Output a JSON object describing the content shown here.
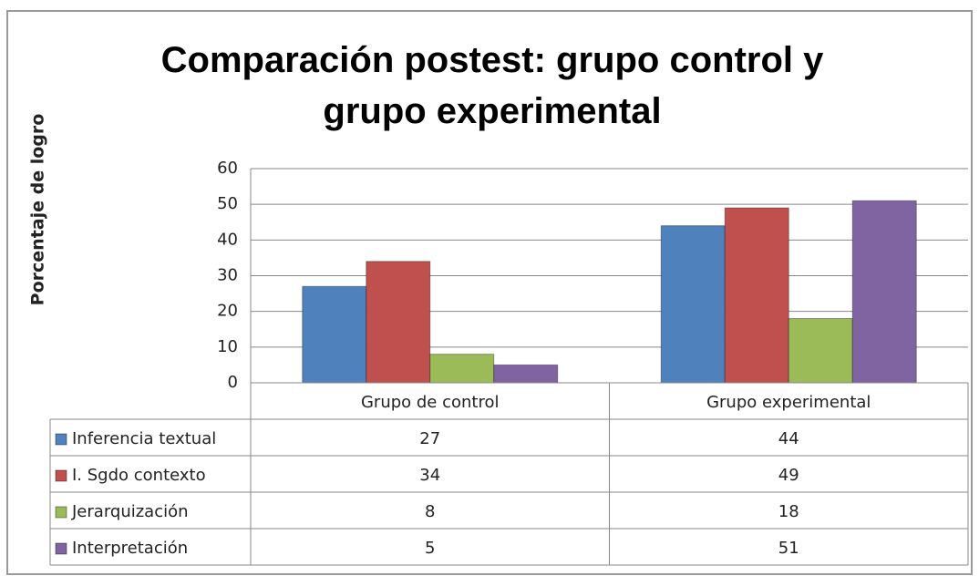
{
  "chart_data": {
    "type": "bar",
    "title": "Comparación postest: grupo control y grupo experimental",
    "y_label": "Porcentaje de logro",
    "categories": [
      "Grupo de control",
      "Grupo experimental"
    ],
    "series": [
      {
        "name": "Inferencia textual",
        "color": "#4f81bd",
        "values": [
          27,
          44
        ]
      },
      {
        "name": "I. Sgdo contexto",
        "color": "#c0504d",
        "values": [
          34,
          49
        ]
      },
      {
        "name": "Jerarquización",
        "color": "#9bbb59",
        "values": [
          8,
          18
        ]
      },
      {
        "name": "Interpretación",
        "color": "#8064a2",
        "values": [
          5,
          51
        ]
      }
    ],
    "ylim": [
      0,
      60
    ],
    "yticks": [
      0,
      10,
      20,
      30,
      40,
      50,
      60
    ],
    "grid": true,
    "data_table": true
  }
}
